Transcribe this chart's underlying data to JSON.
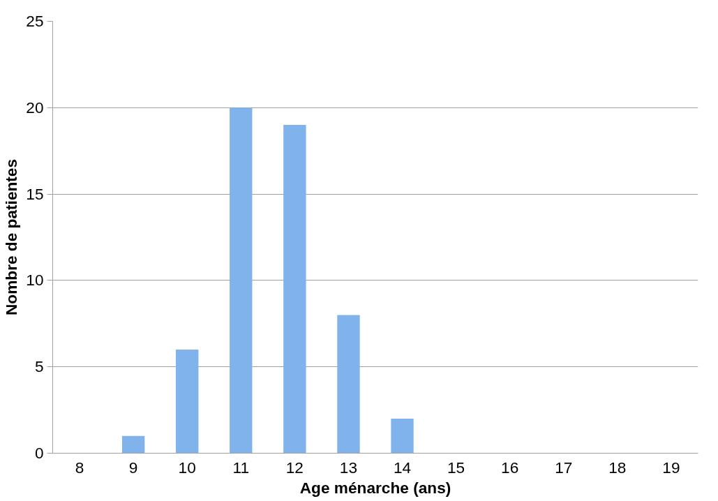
{
  "chart_data": {
    "type": "bar",
    "xlabel": "Age ménarche (ans)",
    "ylabel": "Nombre de patientes",
    "categories": [
      "8",
      "9",
      "10",
      "11",
      "12",
      "13",
      "14",
      "15",
      "16",
      "17",
      "18",
      "19"
    ],
    "values": [
      0,
      1,
      6,
      20,
      19,
      8,
      2,
      0,
      0,
      0,
      0,
      0
    ],
    "color": "#80b2ec",
    "ylim": [
      0,
      25
    ],
    "yticks": [
      0,
      5,
      10,
      15,
      20,
      25
    ],
    "grid": "y"
  }
}
